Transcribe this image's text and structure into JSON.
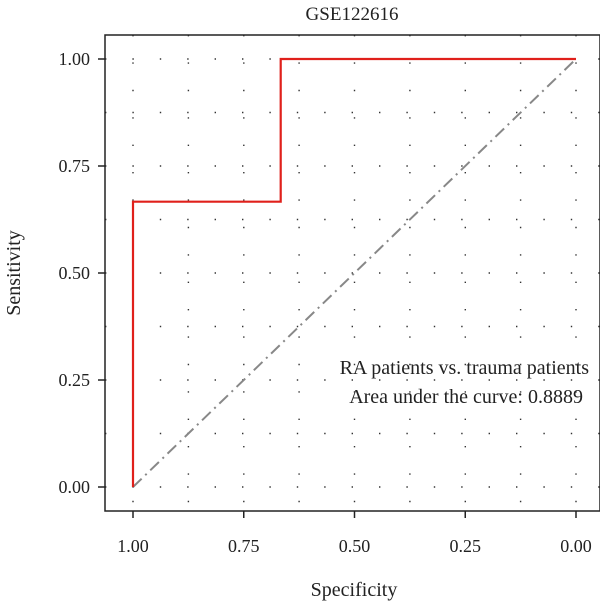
{
  "chart_data": {
    "type": "line",
    "title": "GSE122616",
    "xlabel": "Specificity",
    "ylabel": "Sensitivity",
    "xlim": [
      1.0,
      0.0
    ],
    "ylim": [
      0.0,
      1.0
    ],
    "x_reversed": true,
    "xticks": [
      "1.00",
      "0.75",
      "0.50",
      "0.25",
      "0.00"
    ],
    "yticks": [
      "0.00",
      "0.25",
      "0.50",
      "0.75",
      "1.00"
    ],
    "grid": "dotted",
    "series": [
      {
        "color": "#e0201b",
        "style": "solid",
        "specificity": [
          1.0,
          1.0,
          0.6667,
          0.6667,
          0.0
        ],
        "sensitivity": [
          0.0,
          0.6667,
          0.6667,
          1.0,
          1.0
        ]
      }
    ],
    "reference_line": {
      "color": "#888888",
      "style": "dash-dot",
      "specificity": [
        1.0,
        0.0
      ],
      "sensitivity": [
        0.0,
        1.0
      ]
    },
    "annotations": [
      "RA patients vs. trauma patients",
      "Area under the curve: 0.8889"
    ]
  }
}
